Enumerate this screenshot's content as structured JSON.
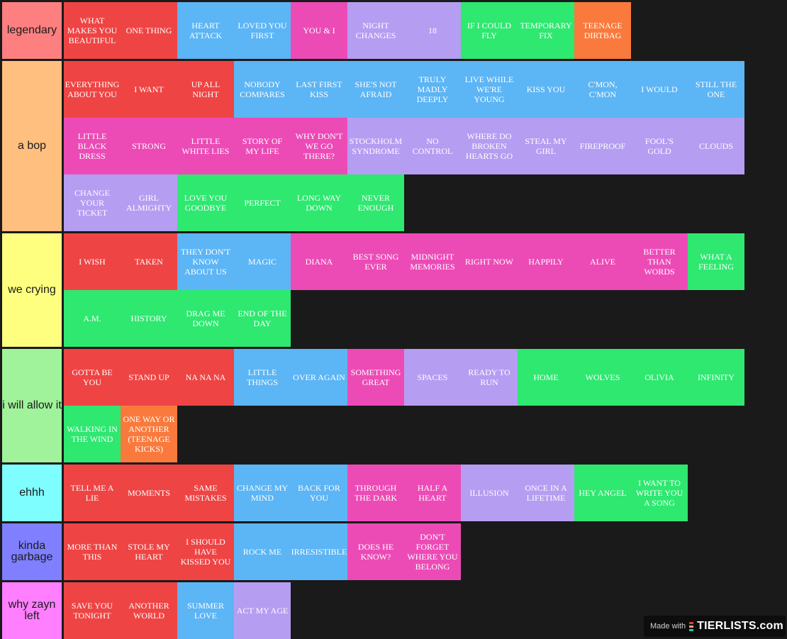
{
  "palette": {
    "red": "#ef4444",
    "blue": "#5cb5f5",
    "pink": "#ec4bb6",
    "lavender": "#b59df2",
    "green": "#2ee870",
    "orange": "#f97a3c"
  },
  "tiers": [
    {
      "label": "legendary",
      "color": "#fe7f7f",
      "rows": 1,
      "items": [
        {
          "text": "What Makes You Beautiful",
          "color": "red"
        },
        {
          "text": "One Thing",
          "color": "red"
        },
        {
          "text": "Heart Attack",
          "color": "blue"
        },
        {
          "text": "Loved You First",
          "color": "blue"
        },
        {
          "text": "You & I",
          "color": "pink"
        },
        {
          "text": "Night Changes",
          "color": "lavender"
        },
        {
          "text": "18",
          "color": "lavender"
        },
        {
          "text": "If I Could Fly",
          "color": "green"
        },
        {
          "text": "Temporary Fix",
          "color": "green"
        },
        {
          "text": "Teenage Dirtbag",
          "color": "orange"
        }
      ]
    },
    {
      "label": "a bop",
      "color": "#ffbf7f",
      "rows": 3,
      "items": [
        {
          "text": "Everything About You",
          "color": "red"
        },
        {
          "text": "I Want",
          "color": "red"
        },
        {
          "text": "Up All Night",
          "color": "red"
        },
        {
          "text": "Nobody Compares",
          "color": "blue"
        },
        {
          "text": "Last First Kiss",
          "color": "blue"
        },
        {
          "text": "She's Not Afraid",
          "color": "blue"
        },
        {
          "text": "Truly Madly Deeply",
          "color": "blue"
        },
        {
          "text": "Live While We're Young",
          "color": "blue"
        },
        {
          "text": "Kiss You",
          "color": "blue"
        },
        {
          "text": "C'mon, C'mon",
          "color": "blue"
        },
        {
          "text": "I Would",
          "color": "blue"
        },
        {
          "text": "Still The One",
          "color": "blue"
        },
        {
          "text": "Little Black Dress",
          "color": "pink"
        },
        {
          "text": "Strong",
          "color": "pink"
        },
        {
          "text": "Little White Lies",
          "color": "pink"
        },
        {
          "text": "Story Of My Life",
          "color": "pink"
        },
        {
          "text": "Why Don't We Go There?",
          "color": "pink"
        },
        {
          "text": "Stockholm Syndrome",
          "color": "lavender"
        },
        {
          "text": "No Control",
          "color": "lavender"
        },
        {
          "text": "Where Do Broken Hearts Go",
          "color": "lavender"
        },
        {
          "text": "Steal My Girl",
          "color": "lavender"
        },
        {
          "text": "Fireproof",
          "color": "lavender"
        },
        {
          "text": "Fool's Gold",
          "color": "lavender"
        },
        {
          "text": "Clouds",
          "color": "lavender"
        },
        {
          "text": "Change Your Ticket",
          "color": "lavender"
        },
        {
          "text": "Girl Almighty",
          "color": "lavender"
        },
        {
          "text": "Love You Goodbye",
          "color": "green"
        },
        {
          "text": "Perfect",
          "color": "green"
        },
        {
          "text": "Long Way Down",
          "color": "green"
        },
        {
          "text": "Never Enough",
          "color": "green"
        }
      ]
    },
    {
      "label": "we crying",
      "color": "#ffff7f",
      "rows": 2,
      "items": [
        {
          "text": "I Wish",
          "color": "red"
        },
        {
          "text": "Taken",
          "color": "red"
        },
        {
          "text": "They Don't Know About Us",
          "color": "blue"
        },
        {
          "text": "Magic",
          "color": "blue"
        },
        {
          "text": "Diana",
          "color": "pink"
        },
        {
          "text": "Best Song Ever",
          "color": "pink"
        },
        {
          "text": "Midnight Memories",
          "color": "pink"
        },
        {
          "text": "Right Now",
          "color": "pink"
        },
        {
          "text": "Happily",
          "color": "pink"
        },
        {
          "text": "Alive",
          "color": "pink"
        },
        {
          "text": "Better Than Words",
          "color": "pink"
        },
        {
          "text": "What A Feeling",
          "color": "green"
        },
        {
          "text": "A.M.",
          "color": "green"
        },
        {
          "text": "History",
          "color": "green"
        },
        {
          "text": "Drag Me Down",
          "color": "green"
        },
        {
          "text": "End Of The Day",
          "color": "green"
        }
      ]
    },
    {
      "label": "i will allow it",
      "color": "#a0f39a",
      "rows": 2,
      "items": [
        {
          "text": "Gotta Be You",
          "color": "red"
        },
        {
          "text": "Stand Up",
          "color": "red"
        },
        {
          "text": "Na Na Na",
          "color": "red"
        },
        {
          "text": "Little Things",
          "color": "blue"
        },
        {
          "text": "Over Again",
          "color": "blue"
        },
        {
          "text": "Something Great",
          "color": "pink"
        },
        {
          "text": "Spaces",
          "color": "lavender"
        },
        {
          "text": "Ready To Run",
          "color": "lavender"
        },
        {
          "text": "Home",
          "color": "green"
        },
        {
          "text": "Wolves",
          "color": "green"
        },
        {
          "text": "Olivia",
          "color": "green"
        },
        {
          "text": "Infinity",
          "color": "green"
        },
        {
          "text": "Walking In The Wind",
          "color": "green"
        },
        {
          "text": "One Way Or Another (Teenage Kicks)",
          "color": "orange"
        }
      ]
    },
    {
      "label": "ehhh",
      "color": "#7ffeff",
      "rows": 1,
      "items": [
        {
          "text": "Tell Me A Lie",
          "color": "red"
        },
        {
          "text": "Moments",
          "color": "red"
        },
        {
          "text": "Same Mistakes",
          "color": "red"
        },
        {
          "text": "Change My Mind",
          "color": "blue"
        },
        {
          "text": "Back For You",
          "color": "blue"
        },
        {
          "text": "Through The Dark",
          "color": "pink"
        },
        {
          "text": "Half A Heart",
          "color": "pink"
        },
        {
          "text": "Illusion",
          "color": "lavender"
        },
        {
          "text": "Once In A Lifetime",
          "color": "lavender"
        },
        {
          "text": "Hey Angel",
          "color": "green"
        },
        {
          "text": "I Want To Write You A Song",
          "color": "green"
        }
      ]
    },
    {
      "label": "kinda garbage",
      "color": "#7f7fff",
      "rows": 1,
      "items": [
        {
          "text": "More Than This",
          "color": "red"
        },
        {
          "text": "Stole My Heart",
          "color": "red"
        },
        {
          "text": "I Should Have Kissed You",
          "color": "red"
        },
        {
          "text": "Rock Me",
          "color": "blue"
        },
        {
          "text": "Irresistible",
          "color": "blue"
        },
        {
          "text": "Does He Know?",
          "color": "pink"
        },
        {
          "text": "Don't Forget Where You Belong",
          "color": "pink"
        }
      ]
    },
    {
      "label": "why zayn left",
      "color": "#ff7fff",
      "rows": 1,
      "items": [
        {
          "text": "Save You Tonight",
          "color": "red"
        },
        {
          "text": "Another World",
          "color": "red"
        },
        {
          "text": "Summer Love",
          "color": "blue"
        },
        {
          "text": "Act My Age",
          "color": "lavender"
        }
      ]
    }
  ],
  "watermark": {
    "made_with": "Made with",
    "brand": "TIERLISTS.com",
    "icon_colors": [
      "#e63946",
      "#f4a261",
      "#2ec4b6"
    ]
  }
}
